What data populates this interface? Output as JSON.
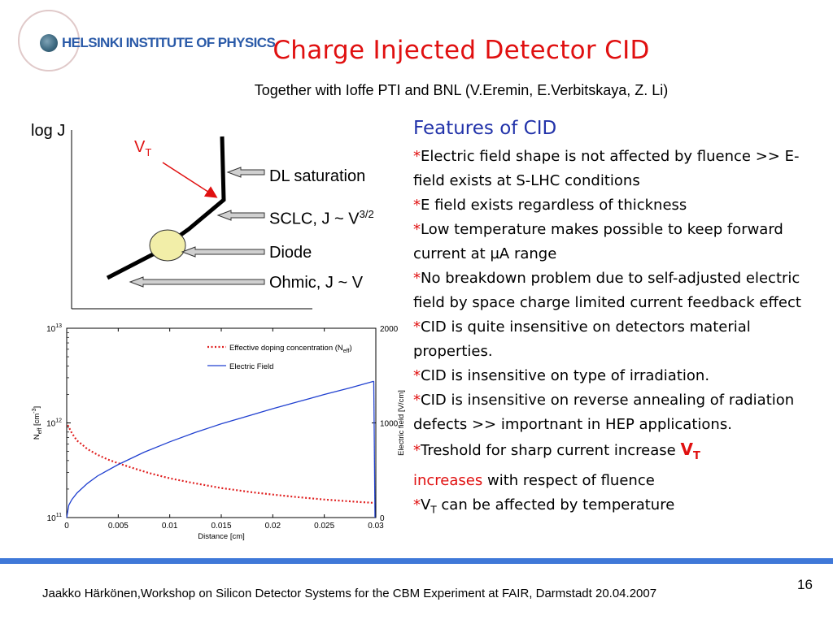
{
  "header": {
    "logo_text": "HELSINKI INSTITUTE OF PHYSICS",
    "title": "Charge Injected Detector CID",
    "subtitle": "Together with Ioffe PTI and BNL (V.Eremin, E.Verbitskaya, Z. Li)"
  },
  "schematic": {
    "y_label": "log J",
    "vt_label": "V",
    "vt_sub": "T",
    "labels": {
      "dl": "DL saturation",
      "sclc": "SCLC, J ~ V",
      "sclc_sup": "3/2",
      "diode": "Diode",
      "ohmic": "Ohmic,  J ~ V"
    }
  },
  "features": {
    "title": "Features of CID",
    "items": [
      "Electric field shape is not affected by fluence >> E-field exists at S-LHC conditions",
      "E field exists regardless of thickness",
      "Low temperature makes possible to keep forward current at µA range",
      "No breakdown problem due to self-adjusted electric field by space charge limited current feedback effect",
      "CID is quite insensitive on detectors material properties.",
      "CID is insensitive on type of irradiation.",
      "CID is insensitive on reverse annealing of radiation defects >> importnant in HEP applications."
    ],
    "vt_item": {
      "pre": "Treshold for sharp current increase ",
      "vt": "V",
      "vt_sub": "T",
      "red_word": "increases",
      "post": " with respect of fluence"
    },
    "temp_item": {
      "v": "V",
      "sub": "T",
      "post": " can be affected by temperature"
    }
  },
  "chart_data": {
    "type": "line",
    "x_label": "Distance [cm]",
    "y_left_label": "N",
    "y_left_label_sub": "eff",
    "y_left_label_unit": " [cm",
    "y_left_label_sup": "-3",
    "y_left_label_end": "]",
    "y_right_label": "Electric field [V/cm]",
    "x_range": [
      0,
      0.03
    ],
    "y_left_range_log": [
      100000000000.0,
      10000000000000.0
    ],
    "y_right_range": [
      0,
      2000
    ],
    "x_ticks": [
      "0",
      "0.005",
      "0.01",
      "0.015",
      "0.02",
      "0.025",
      "0.03"
    ],
    "x_tick_values": [
      0,
      0.005,
      0.01,
      0.015,
      0.02,
      0.025,
      0.03
    ],
    "y_left_ticks": [
      {
        "base": "10",
        "exp": "13",
        "value": 10000000000000.0
      },
      {
        "base": "10",
        "exp": "12",
        "value": 1000000000000.0
      },
      {
        "base": "10",
        "exp": "11",
        "value": 100000000000.0
      }
    ],
    "y_right_ticks": [
      "2000",
      "1000",
      "0"
    ],
    "y_right_tick_values": [
      2000,
      1000,
      0
    ],
    "legend": [
      {
        "name": "Effective doping concentration (N",
        "sub": "eff",
        "end": ")",
        "style": "dotted",
        "color": "#e02020"
      },
      {
        "name": "Electric Field",
        "style": "solid",
        "color": "#2040d0"
      }
    ],
    "series": [
      {
        "name": "Effective doping concentration (Neff)",
        "axis": "left",
        "color": "#e02020",
        "x": [
          0.0001,
          0.0005,
          0.001,
          0.0015,
          0.002,
          0.003,
          0.004,
          0.005,
          0.006,
          0.008,
          0.01,
          0.012,
          0.015,
          0.018,
          0.02,
          0.022,
          0.025,
          0.028,
          0.0298
        ],
        "y": [
          950000000000.0,
          780000000000.0,
          650000000000.0,
          590000000000.0,
          530000000000.0,
          460000000000.0,
          410000000000.0,
          375000000000.0,
          345000000000.0,
          295000000000.0,
          260000000000.0,
          235000000000.0,
          205000000000.0,
          185000000000.0,
          175000000000.0,
          166000000000.0,
          155000000000.0,
          147000000000.0,
          143000000000.0
        ]
      },
      {
        "name": "Electric Field",
        "axis": "right",
        "color": "#2040d0",
        "x": [
          0,
          0.0002,
          0.0005,
          0.001,
          0.002,
          0.003,
          0.005,
          0.0075,
          0.01,
          0.0125,
          0.015,
          0.0175,
          0.02,
          0.0225,
          0.025,
          0.0275,
          0.0298
        ],
        "y": [
          0,
          130,
          190,
          260,
          360,
          440,
          560,
          690,
          800,
          900,
          990,
          1070,
          1150,
          1225,
          1300,
          1370,
          1440
        ]
      }
    ]
  },
  "footer": {
    "text": "Jaakko Härkönen,Workshop on Silicon Detector Systems for the CBM Experiment at FAIR, Darmstadt 20.04.2007",
    "page": "16"
  }
}
